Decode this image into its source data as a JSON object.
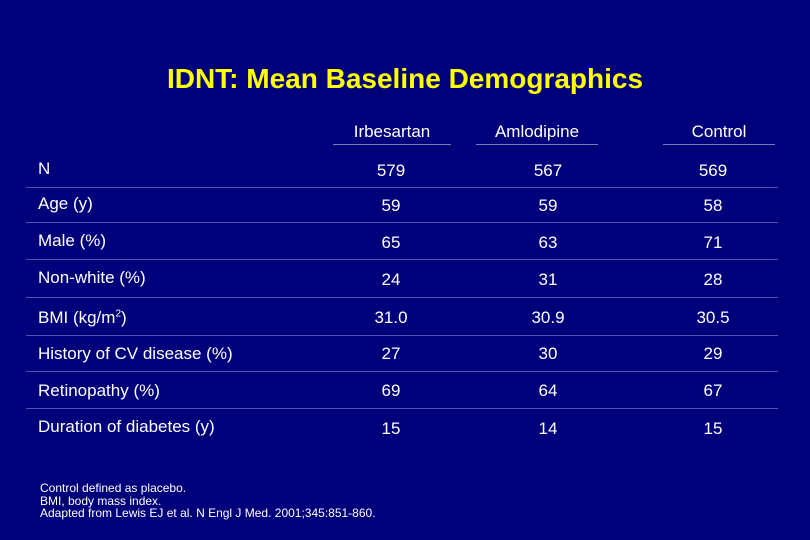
{
  "slide": {
    "title": "IDNT: Mean Baseline Demographics",
    "background_color": "#00007a",
    "title_color": "#ffff00"
  },
  "table": {
    "columns": [
      "Irbesartan",
      "Amlodipine",
      "Control"
    ],
    "rows": [
      {
        "label": "N",
        "values": [
          "579",
          "567",
          "569"
        ]
      },
      {
        "label": "Age (y)",
        "values": [
          "59",
          "59",
          "58"
        ]
      },
      {
        "label": "Male (%)",
        "values": [
          "65",
          "63",
          "71"
        ]
      },
      {
        "label": "Non-white (%)",
        "values": [
          "24",
          "31",
          "28"
        ]
      },
      {
        "label_prefix": "BMI (kg/m",
        "label_sup": "2",
        "label_suffix": ")",
        "values": [
          "31.0",
          "30.9",
          "30.5"
        ]
      },
      {
        "label": "History of CV disease (%)",
        "values": [
          "27",
          "30",
          "29"
        ]
      },
      {
        "label": "Retinopathy (%)",
        "values": [
          "69",
          "64",
          "67"
        ]
      },
      {
        "label": "Duration of diabetes (y)",
        "values": [
          "15",
          "14",
          "15"
        ]
      }
    ]
  },
  "footnotes": [
    "Control defined as placebo.",
    "BMI, body mass index.",
    "Adapted from Lewis EJ et al. N Engl J Med. 2001;345:851-860."
  ]
}
